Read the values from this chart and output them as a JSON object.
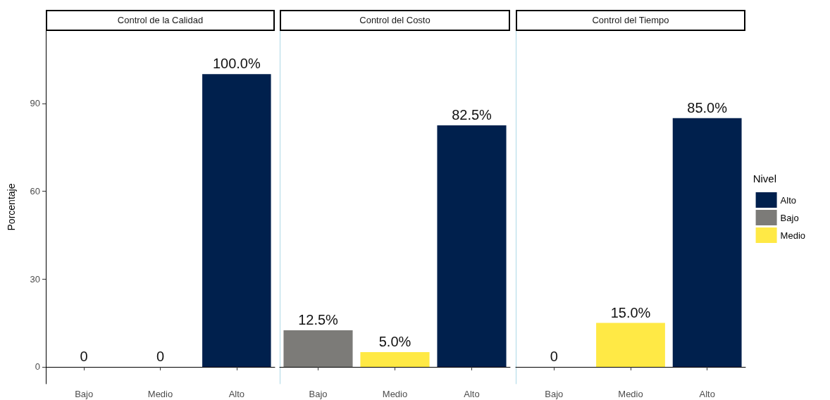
{
  "chart_data": [
    {
      "type": "bar",
      "title": "Control de la Calidad",
      "ylabel": "Porcentaje",
      "categories": [
        "Bajo",
        "Medio",
        "Alto"
      ],
      "ylim": [
        -5.8,
        115
      ],
      "yticks": [
        0,
        30,
        60,
        90
      ],
      "grid": false,
      "series": [
        {
          "color": "#00204d",
          "values": [
            null,
            null,
            100
          ],
          "value_labels": [
            null,
            null,
            "100.0%"
          ]
        },
        {
          "color": "#7c7b78",
          "values": [
            0,
            null,
            null
          ],
          "value_labels": [
            "0",
            null,
            null
          ]
        },
        {
          "color": "#ffe945",
          "values": [
            null,
            0,
            null
          ],
          "value_labels": [
            null,
            "0",
            null
          ]
        }
      ]
    },
    {
      "type": "bar",
      "title": "Control del Costo",
      "categories": [
        "Bajo",
        "Medio",
        "Alto"
      ],
      "ylim": [
        -5.8,
        115
      ],
      "yticks": [
        0,
        30,
        60,
        90
      ],
      "grid": false,
      "tick_labels": "x",
      "series": [
        {
          "color": "#00204d",
          "values": [
            null,
            null,
            82.5
          ],
          "value_labels": [
            null,
            null,
            "82.5%"
          ]
        },
        {
          "color": "#7c7b78",
          "values": [
            12.5,
            null,
            null
          ],
          "value_labels": [
            "12.5%",
            null,
            null
          ]
        },
        {
          "color": "#ffe945",
          "values": [
            null,
            5,
            null
          ],
          "value_labels": [
            null,
            "5.0%",
            null
          ]
        }
      ]
    },
    {
      "type": "bar",
      "title": "Control del Tiempo",
      "categories": [
        "Bajo",
        "Medio",
        "Alto"
      ],
      "ylim": [
        -5.8,
        115
      ],
      "yticks": [
        0,
        30,
        60,
        90
      ],
      "grid": false,
      "tick_labels": "x",
      "legend": "right",
      "legend_title": "Nivel",
      "series": [
        {
          "name": "Alto",
          "color": "#00204d",
          "values": [
            null,
            null,
            85
          ],
          "value_labels": [
            null,
            null,
            "85.0%"
          ]
        },
        {
          "name": "Bajo",
          "color": "#7c7b78",
          "values": [
            0,
            null,
            null
          ],
          "value_labels": [
            "0",
            null,
            null
          ]
        },
        {
          "name": "Medio",
          "color": "#ffe945",
          "values": [
            null,
            15,
            null
          ],
          "value_labels": [
            null,
            "15.0%",
            null
          ]
        }
      ]
    }
  ]
}
